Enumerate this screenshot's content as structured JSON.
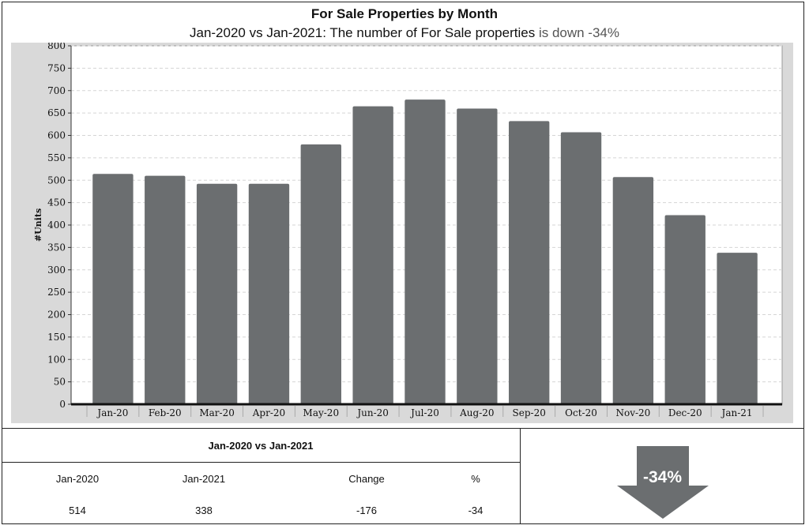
{
  "header": {
    "title": "For Sale Properties by Month",
    "subtitle_main": "Jan-2020 vs Jan-2021: The number of For Sale properties",
    "subtitle_trend": "is down -34%"
  },
  "chart_data": {
    "type": "bar",
    "categories": [
      "Jan-20",
      "Feb-20",
      "Mar-20",
      "Apr-20",
      "May-20",
      "Jun-20",
      "Jul-20",
      "Aug-20",
      "Sep-20",
      "Oct-20",
      "Nov-20",
      "Dec-20",
      "Jan-21"
    ],
    "values": [
      514,
      510,
      492,
      492,
      580,
      665,
      680,
      660,
      632,
      607,
      507,
      422,
      338
    ],
    "title": "For Sale Properties by Month",
    "xlabel": "",
    "ylabel": "#Units",
    "ylim": [
      0,
      800
    ],
    "yticks": [
      0,
      50,
      100,
      150,
      200,
      250,
      300,
      350,
      400,
      450,
      500,
      550,
      600,
      650,
      700,
      750,
      800
    ],
    "grid": true,
    "bar_color": "#6b6e70",
    "background_color": "#d9d9d9"
  },
  "stats": {
    "header": "Jan-2020 vs Jan-2021",
    "columns": [
      "Jan-2020",
      "Jan-2021",
      "Change",
      "%"
    ],
    "values": [
      "514",
      "338",
      "-176",
      "-34"
    ]
  },
  "indicator": {
    "label": "-34%",
    "direction": "down",
    "color": "#6b6e70"
  }
}
